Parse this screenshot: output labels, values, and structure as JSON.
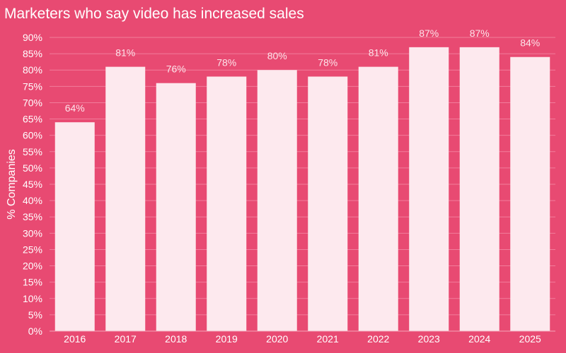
{
  "chart_data": {
    "type": "bar",
    "title": "Marketers who say video has increased sales",
    "ylabel": "% Companies",
    "xlabel": "",
    "categories": [
      "2016",
      "2017",
      "2018",
      "2019",
      "2020",
      "2021",
      "2022",
      "2023",
      "2024",
      "2025"
    ],
    "values": [
      64,
      81,
      76,
      78,
      80,
      78,
      81,
      87,
      87,
      84
    ],
    "data_labels": [
      "64%",
      "81%",
      "76%",
      "78%",
      "80%",
      "78%",
      "81%",
      "87%",
      "87%",
      "84%"
    ],
    "ylim": [
      0,
      90
    ],
    "yticks": [
      0,
      5,
      10,
      15,
      20,
      25,
      30,
      35,
      40,
      45,
      50,
      55,
      60,
      65,
      70,
      75,
      80,
      85,
      90
    ],
    "ytick_suffix": "%",
    "grid": true,
    "legend": "none",
    "colors": {
      "background": "#e84a72",
      "bar": "#fde9ee",
      "text": "#ffffff"
    }
  }
}
